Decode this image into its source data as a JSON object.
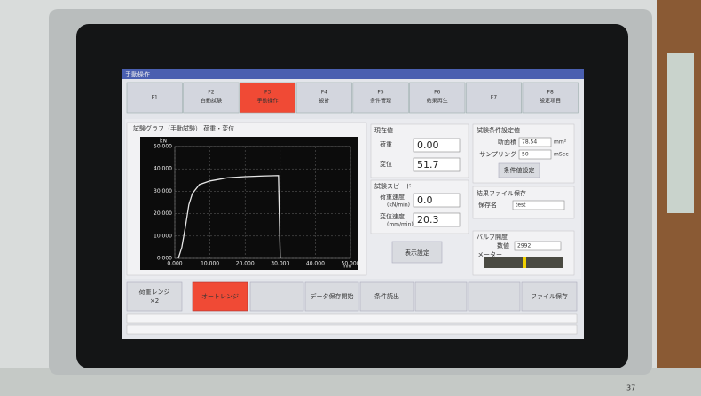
{
  "screen_title": "手動操作",
  "tabs": [
    {
      "key": "F1"
    },
    {
      "key": "F2",
      "label": "自動試験"
    },
    {
      "key": "F3",
      "label": "手動操作"
    },
    {
      "key": "F4",
      "label": "設計"
    },
    {
      "key": "F5",
      "label": "条件管理"
    },
    {
      "key": "F6",
      "label": "結果再生"
    },
    {
      "key": "F7"
    },
    {
      "key": "F8",
      "label": "設定項目"
    }
  ],
  "chart_data": {
    "type": "line",
    "title": "試験グラフ（手動試験） 荷重・変位",
    "y_unit": "kN",
    "x_unit": "mm",
    "x": [
      1,
      2,
      3,
      4,
      5,
      7,
      10,
      15,
      20,
      25,
      29.5,
      30
    ],
    "series": [
      {
        "color": "#e6e6e6",
        "values": [
          0,
          5,
          14,
          24,
          29,
          33,
          34.6,
          36,
          36.5,
          36.8,
          37,
          0
        ]
      }
    ],
    "xlim": [
      0,
      50
    ],
    "ylim": [
      0,
      50
    ],
    "xticks": [
      {
        "value": 0,
        "label": "0.000"
      },
      {
        "value": 10,
        "label": "10.000"
      },
      {
        "value": 20,
        "label": "20.000"
      },
      {
        "value": 30,
        "label": "30.000"
      },
      {
        "value": 40,
        "label": "40.000"
      },
      {
        "value": 50,
        "label": "50.000"
      }
    ],
    "yticks": [
      {
        "value": 0,
        "label": "0.000"
      },
      {
        "value": 10,
        "label": "10.000"
      },
      {
        "value": 20,
        "label": "20.000"
      },
      {
        "value": 30,
        "label": "30.000"
      },
      {
        "value": 40,
        "label": "40.000"
      },
      {
        "value": 50,
        "label": "50.000"
      }
    ],
    "grid": true
  },
  "current": {
    "title": "現在値",
    "load_label": "荷重",
    "load": "0.00",
    "disp_label": "変位",
    "disp": "51.7"
  },
  "speed": {
    "title": "試験スピード",
    "load_rate_label": "荷重速度",
    "load_rate_unit": "(kN/min)",
    "load_rate": "0.0",
    "disp_rate_label": "変位速度",
    "disp_rate_unit": "(mm/min)",
    "disp_rate": "20.3"
  },
  "display_button": "表示設定",
  "conditions": {
    "title": "試験条件設定値",
    "area_label": "断面積",
    "area": "78.54",
    "area_unit": "mm²",
    "sampling_label": "サンプリング",
    "sampling": "50",
    "sampling_unit": "mSec",
    "button": "条件値設定"
  },
  "save": {
    "title": "結果ファイル保存",
    "name_label": "保存名",
    "name": "test"
  },
  "valve": {
    "title": "バルブ開度",
    "value_label": "数値",
    "value": "2992",
    "meter_label": "メーター"
  },
  "bottom_buttons": {
    "load_range": [
      "荷重レンジ",
      "×2"
    ],
    "auto_range": "オートレンジ",
    "data_save": "データ保存開始",
    "read_conditions": "条件読出",
    "file_save": "ファイル保存"
  },
  "page_number": "37"
}
